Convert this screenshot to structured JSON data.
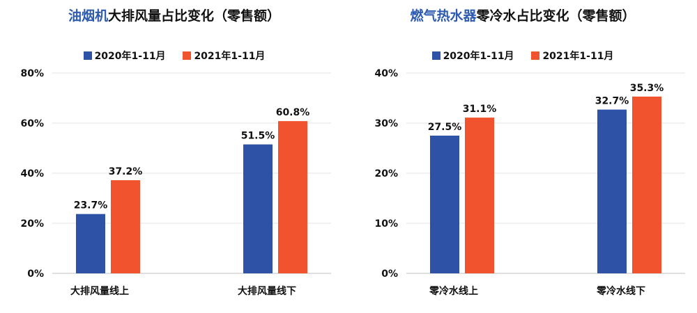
{
  "chart_data": [
    {
      "type": "bar",
      "title_highlight": "油烟机",
      "title_rest": "大排风量占比变化（零售额）",
      "categories": [
        "大排风量线上",
        "大排风量线下"
      ],
      "series": [
        {
          "name": "2020年1-11月",
          "values": [
            23.7,
            51.5
          ],
          "labels": [
            "23.7%",
            "51.5%"
          ]
        },
        {
          "name": "2021年1-11月",
          "values": [
            37.2,
            60.8
          ],
          "labels": [
            "37.2%",
            "60.8%"
          ]
        }
      ],
      "yticks": [
        "0%",
        "20%",
        "40%",
        "60%",
        "80%"
      ],
      "ylim": [
        0,
        80
      ],
      "legend_position": "top-center",
      "grid": true
    },
    {
      "type": "bar",
      "title_highlight": "燃气热水器",
      "title_rest": "零冷水占比变化（零售额）",
      "categories": [
        "零冷水线上",
        "零冷水线下"
      ],
      "series": [
        {
          "name": "2020年1-11月",
          "values": [
            27.5,
            32.7
          ],
          "labels": [
            "27.5%",
            "32.7%"
          ]
        },
        {
          "name": "2021年1-11月",
          "values": [
            31.1,
            35.3
          ],
          "labels": [
            "31.1%",
            "35.3%"
          ]
        }
      ],
      "yticks": [
        "0%",
        "10%",
        "20%",
        "30%",
        "40%"
      ],
      "ylim": [
        0,
        40
      ],
      "legend_position": "top-center",
      "grid": true
    }
  ],
  "colors": {
    "series_2020": "#2e53a6",
    "series_2021": "#f0532d",
    "title_highlight": "#2e5bb0",
    "grid": "#e3e3e3",
    "axis": "#bfbfbf"
  }
}
